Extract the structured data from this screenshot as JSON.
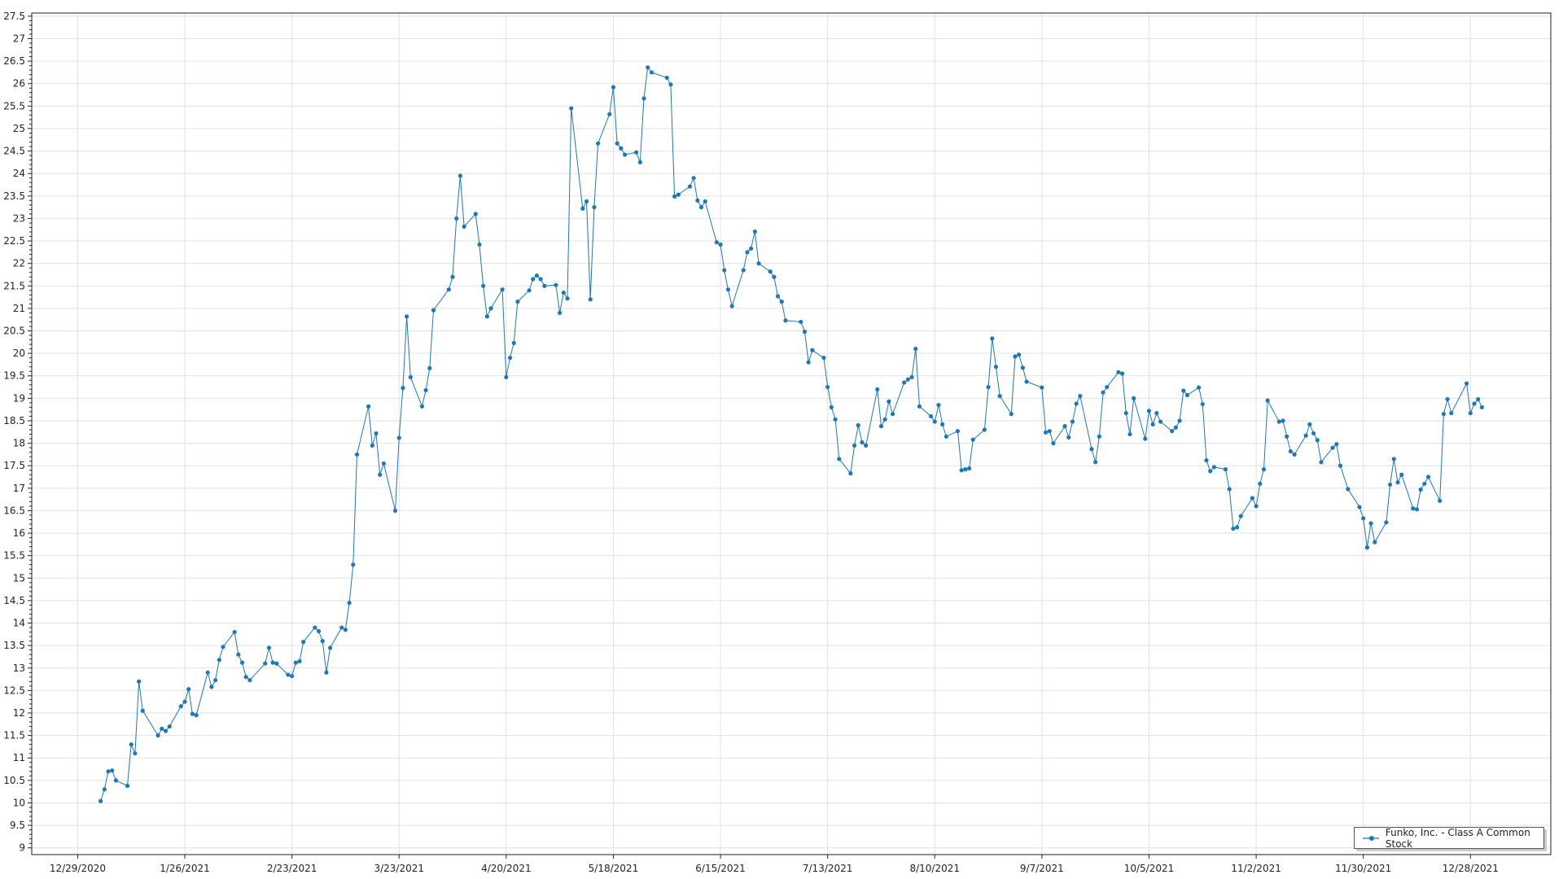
{
  "chart_data": {
    "type": "line",
    "title": "",
    "xlabel": "",
    "ylabel": "",
    "xlim": [
      "2020-12-17",
      "2022-01-18"
    ],
    "ylim": [
      8.85,
      27.57
    ],
    "grid": true,
    "legend_position": "bottom-right",
    "line_color": "#1f77b4",
    "x_tick_labels": [
      "12/29/2020",
      "1/26/2021",
      "2/23/2021",
      "3/23/2021",
      "4/20/2021",
      "5/18/2021",
      "6/15/2021",
      "7/13/2021",
      "8/10/2021",
      "9/7/2021",
      "10/5/2021",
      "11/2/2021",
      "11/30/2021",
      "12/28/2021"
    ],
    "x_tick_dates": [
      "2020-12-29",
      "2021-01-26",
      "2021-02-23",
      "2021-03-23",
      "2021-04-20",
      "2021-05-18",
      "2021-06-15",
      "2021-07-13",
      "2021-08-10",
      "2021-09-07",
      "2021-10-05",
      "2021-11-02",
      "2021-11-30",
      "2021-12-28"
    ],
    "y_tick_labels": [
      "9",
      "9.5",
      "10",
      "10.5",
      "11",
      "11.5",
      "12",
      "12.5",
      "13",
      "13.5",
      "14",
      "14.5",
      "15",
      "15.5",
      "16",
      "16.5",
      "17",
      "17.5",
      "18",
      "18.5",
      "19",
      "19.5",
      "20",
      "20.5",
      "21",
      "21.5",
      "22",
      "22.5",
      "23",
      "23.5",
      "24",
      "24.5",
      "25",
      "25.5",
      "26",
      "26.5",
      "27",
      "27.5"
    ],
    "series": [
      {
        "name": "Funko, Inc. - Class A Common Stock",
        "points": [
          [
            "2021-01-04",
            10.04
          ],
          [
            "2021-01-05",
            10.3
          ],
          [
            "2021-01-06",
            10.7
          ],
          [
            "2021-01-07",
            10.72
          ],
          [
            "2021-01-08",
            10.5
          ],
          [
            "2021-01-11",
            10.38
          ],
          [
            "2021-01-12",
            11.3
          ],
          [
            "2021-01-13",
            11.1
          ],
          [
            "2021-01-14",
            12.7
          ],
          [
            "2021-01-15",
            12.05
          ],
          [
            "2021-01-19",
            11.5
          ],
          [
            "2021-01-20",
            11.65
          ],
          [
            "2021-01-21",
            11.6
          ],
          [
            "2021-01-22",
            11.7
          ],
          [
            "2021-01-25",
            12.15
          ],
          [
            "2021-01-26",
            12.25
          ],
          [
            "2021-01-27",
            12.53
          ],
          [
            "2021-01-28",
            11.98
          ],
          [
            "2021-01-29",
            11.95
          ],
          [
            "2021-02-01",
            12.9
          ],
          [
            "2021-02-02",
            12.58
          ],
          [
            "2021-02-03",
            12.73
          ],
          [
            "2021-02-04",
            13.18
          ],
          [
            "2021-02-05",
            13.47
          ],
          [
            "2021-02-08",
            13.8
          ],
          [
            "2021-02-09",
            13.3
          ],
          [
            "2021-02-10",
            13.12
          ],
          [
            "2021-02-11",
            12.8
          ],
          [
            "2021-02-12",
            12.73
          ],
          [
            "2021-02-16",
            13.1
          ],
          [
            "2021-02-17",
            13.45
          ],
          [
            "2021-02-18",
            13.12
          ],
          [
            "2021-02-19",
            13.1
          ],
          [
            "2021-02-22",
            12.85
          ],
          [
            "2021-02-23",
            12.82
          ],
          [
            "2021-02-24",
            13.12
          ],
          [
            "2021-02-25",
            13.15
          ],
          [
            "2021-02-26",
            13.58
          ],
          [
            "2021-03-01",
            13.9
          ],
          [
            "2021-03-02",
            13.82
          ],
          [
            "2021-03-03",
            13.6
          ],
          [
            "2021-03-04",
            12.9
          ],
          [
            "2021-03-05",
            13.45
          ],
          [
            "2021-03-08",
            13.9
          ],
          [
            "2021-03-09",
            13.85
          ],
          [
            "2021-03-10",
            14.45
          ],
          [
            "2021-03-11",
            15.3
          ],
          [
            "2021-03-12",
            17.75
          ],
          [
            "2021-03-15",
            18.82
          ],
          [
            "2021-03-16",
            17.95
          ],
          [
            "2021-03-17",
            18.22
          ],
          [
            "2021-03-18",
            17.3
          ],
          [
            "2021-03-19",
            17.55
          ],
          [
            "2021-03-22",
            16.5
          ],
          [
            "2021-03-23",
            18.12
          ],
          [
            "2021-03-24",
            19.23
          ],
          [
            "2021-03-25",
            20.82
          ],
          [
            "2021-03-26",
            19.47
          ],
          [
            "2021-03-29",
            18.82
          ],
          [
            "2021-03-30",
            19.18
          ],
          [
            "2021-03-31",
            19.67
          ],
          [
            "2021-04-01",
            20.96
          ],
          [
            "2021-04-05",
            21.42
          ],
          [
            "2021-04-06",
            21.7
          ],
          [
            "2021-04-07",
            23.0
          ],
          [
            "2021-04-08",
            23.95
          ],
          [
            "2021-04-09",
            22.82
          ],
          [
            "2021-04-12",
            23.1
          ],
          [
            "2021-04-13",
            22.42
          ],
          [
            "2021-04-14",
            21.5
          ],
          [
            "2021-04-15",
            20.82
          ],
          [
            "2021-04-16",
            21.0
          ],
          [
            "2021-04-19",
            21.42
          ],
          [
            "2021-04-20",
            19.47
          ],
          [
            "2021-04-21",
            19.9
          ],
          [
            "2021-04-22",
            20.23
          ],
          [
            "2021-04-23",
            21.15
          ],
          [
            "2021-04-26",
            21.4
          ],
          [
            "2021-04-27",
            21.65
          ],
          [
            "2021-04-28",
            21.73
          ],
          [
            "2021-04-29",
            21.65
          ],
          [
            "2021-04-30",
            21.5
          ],
          [
            "2021-05-03",
            21.52
          ],
          [
            "2021-05-04",
            20.9
          ],
          [
            "2021-05-05",
            21.35
          ],
          [
            "2021-05-06",
            21.22
          ],
          [
            "2021-05-07",
            25.45
          ],
          [
            "2021-05-10",
            23.22
          ],
          [
            "2021-05-11",
            23.38
          ],
          [
            "2021-05-12",
            21.2
          ],
          [
            "2021-05-13",
            23.25
          ],
          [
            "2021-05-14",
            24.67
          ],
          [
            "2021-05-17",
            25.32
          ],
          [
            "2021-05-18",
            25.92
          ],
          [
            "2021-05-19",
            24.67
          ],
          [
            "2021-05-20",
            24.56
          ],
          [
            "2021-05-21",
            24.42
          ],
          [
            "2021-05-24",
            24.47
          ],
          [
            "2021-05-25",
            24.25
          ],
          [
            "2021-05-26",
            25.67
          ],
          [
            "2021-05-27",
            26.36
          ],
          [
            "2021-05-28",
            26.25
          ],
          [
            "2021-06-01",
            26.13
          ],
          [
            "2021-06-02",
            25.98
          ],
          [
            "2021-06-03",
            23.49
          ],
          [
            "2021-06-04",
            23.53
          ],
          [
            "2021-06-07",
            23.71
          ],
          [
            "2021-06-08",
            23.9
          ],
          [
            "2021-06-09",
            23.4
          ],
          [
            "2021-06-10",
            23.25
          ],
          [
            "2021-06-11",
            23.38
          ],
          [
            "2021-06-14",
            22.47
          ],
          [
            "2021-06-15",
            22.42
          ],
          [
            "2021-06-16",
            21.85
          ],
          [
            "2021-06-17",
            21.42
          ],
          [
            "2021-06-18",
            21.05
          ],
          [
            "2021-06-21",
            21.85
          ],
          [
            "2021-06-22",
            22.25
          ],
          [
            "2021-06-23",
            22.33
          ],
          [
            "2021-06-24",
            22.71
          ],
          [
            "2021-06-25",
            22.0
          ],
          [
            "2021-06-28",
            21.82
          ],
          [
            "2021-06-29",
            21.7
          ],
          [
            "2021-06-30",
            21.27
          ],
          [
            "2021-07-01",
            21.15
          ],
          [
            "2021-07-02",
            20.73
          ],
          [
            "2021-07-06",
            20.7
          ],
          [
            "2021-07-07",
            20.48
          ],
          [
            "2021-07-08",
            19.8
          ],
          [
            "2021-07-09",
            20.07
          ],
          [
            "2021-07-12",
            19.9
          ],
          [
            "2021-07-13",
            19.25
          ],
          [
            "2021-07-14",
            18.8
          ],
          [
            "2021-07-15",
            18.53
          ],
          [
            "2021-07-16",
            17.65
          ],
          [
            "2021-07-19",
            17.33
          ],
          [
            "2021-07-20",
            17.95
          ],
          [
            "2021-07-21",
            18.4
          ],
          [
            "2021-07-22",
            18.02
          ],
          [
            "2021-07-23",
            17.95
          ],
          [
            "2021-07-26",
            19.2
          ],
          [
            "2021-07-27",
            18.38
          ],
          [
            "2021-07-28",
            18.53
          ],
          [
            "2021-07-29",
            18.93
          ],
          [
            "2021-07-30",
            18.65
          ],
          [
            "2021-08-02",
            19.35
          ],
          [
            "2021-08-03",
            19.42
          ],
          [
            "2021-08-04",
            19.47
          ],
          [
            "2021-08-05",
            20.1
          ],
          [
            "2021-08-06",
            18.82
          ],
          [
            "2021-08-09",
            18.6
          ],
          [
            "2021-08-10",
            18.48
          ],
          [
            "2021-08-11",
            18.85
          ],
          [
            "2021-08-12",
            18.42
          ],
          [
            "2021-08-13",
            18.15
          ],
          [
            "2021-08-16",
            18.27
          ],
          [
            "2021-08-17",
            17.4
          ],
          [
            "2021-08-18",
            17.42
          ],
          [
            "2021-08-19",
            17.44
          ],
          [
            "2021-08-20",
            18.08
          ],
          [
            "2021-08-23",
            18.3
          ],
          [
            "2021-08-24",
            19.25
          ],
          [
            "2021-08-25",
            20.33
          ],
          [
            "2021-08-26",
            19.7
          ],
          [
            "2021-08-27",
            19.05
          ],
          [
            "2021-08-30",
            18.65
          ],
          [
            "2021-08-31",
            19.93
          ],
          [
            "2021-09-01",
            19.97
          ],
          [
            "2021-09-02",
            19.68
          ],
          [
            "2021-09-03",
            19.37
          ],
          [
            "2021-09-07",
            19.24
          ],
          [
            "2021-09-08",
            18.24
          ],
          [
            "2021-09-09",
            18.27
          ],
          [
            "2021-09-10",
            18.0
          ],
          [
            "2021-09-13",
            18.38
          ],
          [
            "2021-09-14",
            18.13
          ],
          [
            "2021-09-15",
            18.48
          ],
          [
            "2021-09-16",
            18.88
          ],
          [
            "2021-09-17",
            19.05
          ],
          [
            "2021-09-20",
            17.87
          ],
          [
            "2021-09-21",
            17.58
          ],
          [
            "2021-09-22",
            18.15
          ],
          [
            "2021-09-23",
            19.13
          ],
          [
            "2021-09-24",
            19.25
          ],
          [
            "2021-09-27",
            19.58
          ],
          [
            "2021-09-28",
            19.55
          ],
          [
            "2021-09-29",
            18.67
          ],
          [
            "2021-09-30",
            18.2
          ],
          [
            "2021-10-01",
            19.0
          ],
          [
            "2021-10-04",
            18.1
          ],
          [
            "2021-10-05",
            18.72
          ],
          [
            "2021-10-06",
            18.42
          ],
          [
            "2021-10-07",
            18.67
          ],
          [
            "2021-10-08",
            18.48
          ],
          [
            "2021-10-11",
            18.27
          ],
          [
            "2021-10-12",
            18.35
          ],
          [
            "2021-10-13",
            18.5
          ],
          [
            "2021-10-14",
            19.17
          ],
          [
            "2021-10-15",
            19.07
          ],
          [
            "2021-10-18",
            19.24
          ],
          [
            "2021-10-19",
            18.87
          ],
          [
            "2021-10-20",
            17.62
          ],
          [
            "2021-10-21",
            17.38
          ],
          [
            "2021-10-22",
            17.47
          ],
          [
            "2021-10-25",
            17.42
          ],
          [
            "2021-10-26",
            16.98
          ],
          [
            "2021-10-27",
            16.1
          ],
          [
            "2021-10-28",
            16.13
          ],
          [
            "2021-10-29",
            16.38
          ],
          [
            "2021-11-01",
            16.78
          ],
          [
            "2021-11-02",
            16.6
          ],
          [
            "2021-11-03",
            17.1
          ],
          [
            "2021-11-04",
            17.42
          ],
          [
            "2021-11-05",
            18.95
          ],
          [
            "2021-11-08",
            18.48
          ],
          [
            "2021-11-09",
            18.5
          ],
          [
            "2021-11-10",
            18.15
          ],
          [
            "2021-11-11",
            17.82
          ],
          [
            "2021-11-12",
            17.75
          ],
          [
            "2021-11-15",
            18.17
          ],
          [
            "2021-11-16",
            18.42
          ],
          [
            "2021-11-17",
            18.22
          ],
          [
            "2021-11-18",
            18.07
          ],
          [
            "2021-11-19",
            17.58
          ],
          [
            "2021-11-22",
            17.9
          ],
          [
            "2021-11-23",
            17.98
          ],
          [
            "2021-11-24",
            17.5
          ],
          [
            "2021-11-26",
            16.98
          ],
          [
            "2021-11-29",
            16.58
          ],
          [
            "2021-11-30",
            16.33
          ],
          [
            "2021-12-01",
            15.68
          ],
          [
            "2021-12-02",
            16.22
          ],
          [
            "2021-12-03",
            15.8
          ],
          [
            "2021-12-06",
            16.24
          ],
          [
            "2021-12-07",
            17.08
          ],
          [
            "2021-12-08",
            17.65
          ],
          [
            "2021-12-09",
            17.13
          ],
          [
            "2021-12-10",
            17.3
          ],
          [
            "2021-12-13",
            16.55
          ],
          [
            "2021-12-14",
            16.53
          ],
          [
            "2021-12-15",
            16.97
          ],
          [
            "2021-12-16",
            17.1
          ],
          [
            "2021-12-17",
            17.25
          ],
          [
            "2021-12-20",
            16.72
          ],
          [
            "2021-12-21",
            18.65
          ],
          [
            "2021-12-22",
            18.98
          ],
          [
            "2021-12-23",
            18.67
          ],
          [
            "2021-12-27",
            19.33
          ],
          [
            "2021-12-28",
            18.67
          ],
          [
            "2021-12-29",
            18.88
          ],
          [
            "2021-12-30",
            18.98
          ],
          [
            "2021-12-31",
            18.8
          ]
        ]
      }
    ]
  }
}
